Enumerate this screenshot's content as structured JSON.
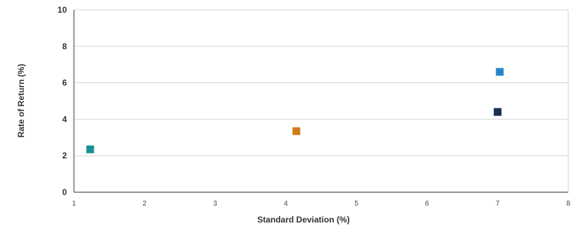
{
  "chart_data": {
    "type": "scatter",
    "title": "",
    "xlabel": "Standard Deviation (%)",
    "ylabel": "Rate of Return (%)",
    "xlim": [
      1,
      8
    ],
    "ylim": [
      0,
      10
    ],
    "x_ticks": [
      1,
      2,
      3,
      4,
      5,
      6,
      7,
      8
    ],
    "y_ticks": [
      0,
      2,
      4,
      6,
      8,
      10
    ],
    "grid": "horizontal",
    "marker": "square",
    "points": [
      {
        "x": 1.23,
        "y": 2.35,
        "color": "#1b8f96"
      },
      {
        "x": 4.15,
        "y": 3.35,
        "color": "#d07a18"
      },
      {
        "x": 7.03,
        "y": 6.6,
        "color": "#2a86c8"
      },
      {
        "x": 7.0,
        "y": 4.4,
        "color": "#13304f"
      }
    ]
  }
}
